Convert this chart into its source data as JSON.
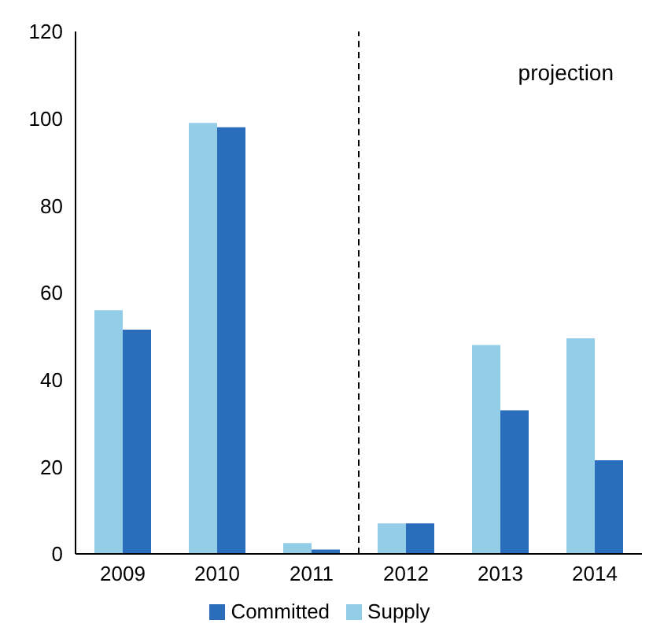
{
  "chart_data": {
    "type": "bar",
    "x": [
      2009,
      2010,
      2011,
      2012,
      2013,
      2014
    ],
    "xlim": [
      2008.5,
      2014.5
    ],
    "xticks": [
      2009,
      2010,
      2011,
      2012,
      2013,
      2014
    ],
    "series": [
      {
        "name": "Supply",
        "color": "#93cde8",
        "values": [
          56,
          99,
          2.5,
          7,
          48,
          49.5
        ]
      },
      {
        "name": "Committed",
        "color": "#2a6ebb",
        "values": [
          51.5,
          98,
          1,
          7,
          33,
          21.5
        ]
      }
    ],
    "ylim": [
      0,
      120
    ],
    "yticks": [
      0,
      20,
      40,
      60,
      80,
      100,
      120
    ],
    "grid": false,
    "legend": "bottom",
    "ref_lines": [
      {
        "axis": "x",
        "value": 2011.5,
        "color": "#000000",
        "line_style": "dashed"
      }
    ],
    "annotations": [
      "projection"
    ]
  }
}
